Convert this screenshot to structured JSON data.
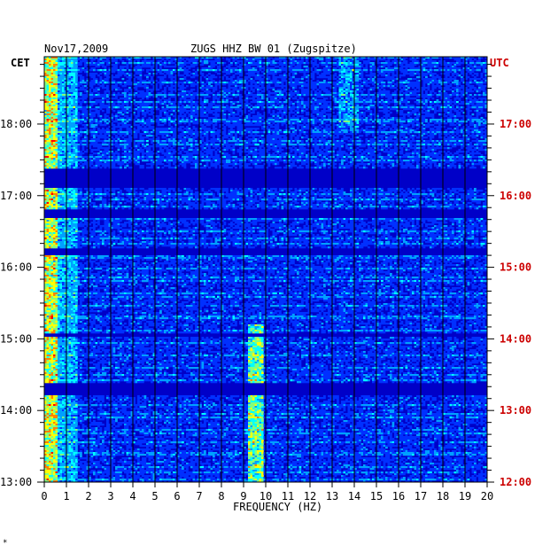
{
  "chart_data": {
    "type": "heatmap",
    "date": "Nov17,2009",
    "title": "ZUGS HHZ BW 01 (Zugspitze)",
    "xlabel": "FREQUENCY (HZ)",
    "left_axis_label": "CET",
    "right_axis_label": "UTC",
    "xlim": [
      0,
      20
    ],
    "x_ticks": [
      "0",
      "1",
      "2",
      "3",
      "4",
      "5",
      "6",
      "7",
      "8",
      "9",
      "10",
      "11",
      "12",
      "13",
      "14",
      "15",
      "16",
      "17",
      "18",
      "19",
      "20"
    ],
    "ylim_hours_cet": [
      13.0,
      18.94
    ],
    "cet_ticks": [
      {
        "label": "18:00",
        "hour": 18
      },
      {
        "label": "17:00",
        "hour": 17
      },
      {
        "label": "16:00",
        "hour": 16
      },
      {
        "label": "15:00",
        "hour": 15
      },
      {
        "label": "14:00",
        "hour": 14
      },
      {
        "label": "13:00",
        "hour": 13
      }
    ],
    "utc_ticks": [
      {
        "label": "17:00",
        "hour": 18
      },
      {
        "label": "16:00",
        "hour": 17
      },
      {
        "label": "15:00",
        "hour": 16
      },
      {
        "label": "14:00",
        "hour": 15
      },
      {
        "label": "13:00",
        "hour": 14
      },
      {
        "label": "12:00",
        "hour": 13
      }
    ],
    "quiet_bands_hours": [
      [
        17.12,
        17.38
      ],
      [
        16.7,
        16.82
      ],
      [
        16.18,
        16.27
      ],
      [
        15.03,
        15.09
      ],
      [
        14.22,
        14.38
      ]
    ],
    "colormap": [
      "#00007a",
      "#0000c8",
      "#0030ff",
      "#00a0ff",
      "#00ffff",
      "#80ff80",
      "#ffff00",
      "#ff8000",
      "#ff0000"
    ],
    "grid": "vertical lines at each 1 Hz",
    "footnote": "*"
  }
}
